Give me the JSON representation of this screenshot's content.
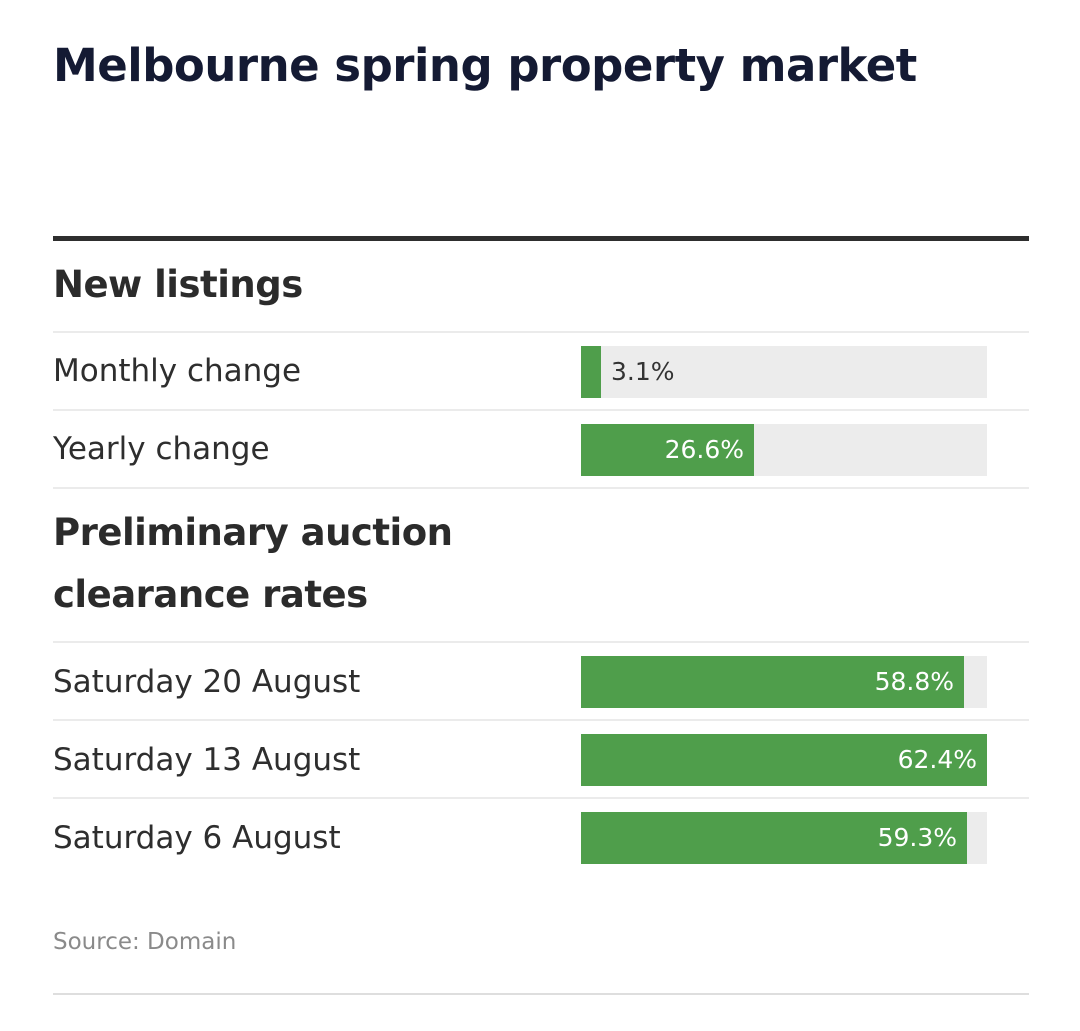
{
  "title": "Melbourne spring property market",
  "colors": {
    "bar": "#4f9e4b",
    "track": "#ececec",
    "title": "#141a33"
  },
  "chart_data": {
    "type": "bar",
    "orientation": "horizontal",
    "xlim": [
      0,
      62.4
    ],
    "sections": [
      {
        "heading": "New listings",
        "rows": [
          {
            "label": "Monthly change",
            "value": 3.1,
            "display": "3.1%"
          },
          {
            "label": "Yearly change",
            "value": 26.6,
            "display": "26.6%"
          }
        ]
      },
      {
        "heading": "Preliminary auction clearance rates",
        "rows": [
          {
            "label": "Saturday 20 August",
            "value": 58.8,
            "display": "58.8%"
          },
          {
            "label": "Saturday 13 August",
            "value": 62.4,
            "display": "62.4%"
          },
          {
            "label": "Saturday 6 August",
            "value": 59.3,
            "display": "59.3%"
          }
        ]
      }
    ]
  },
  "source": "Source: Domain"
}
